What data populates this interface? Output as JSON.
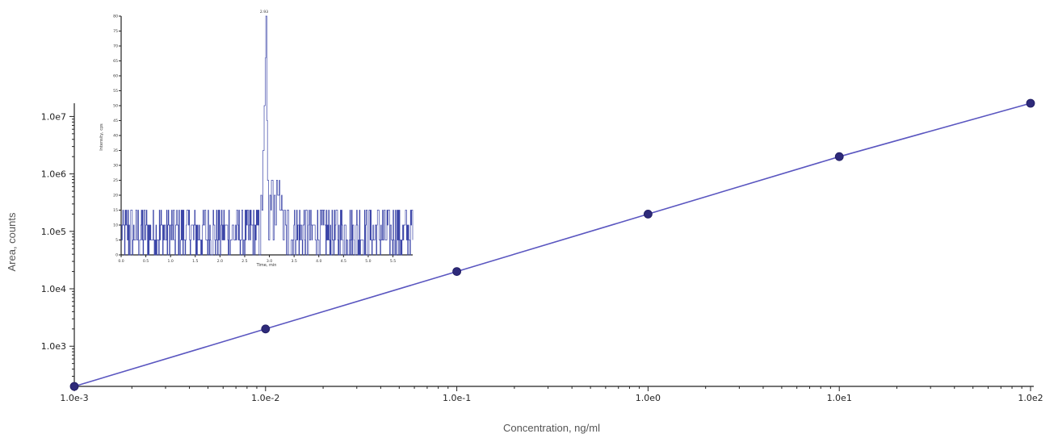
{
  "chart_data": [
    {
      "type": "line",
      "title": "",
      "xlabel": "Concentration, ng/ml",
      "ylabel": "Area, counts",
      "x_scale": "log",
      "y_scale": "log",
      "xlim": [
        0.001,
        100
      ],
      "ylim": [
        200,
        17000000
      ],
      "x_ticks": [
        0.001,
        0.01,
        0.1,
        1,
        10,
        100
      ],
      "x_tick_labels": [
        "1.0e-3",
        "1.0e-2",
        "1.0e-1",
        "1.0e0",
        "1.0e1",
        "1.0e2"
      ],
      "y_ticks": [
        1000,
        10000,
        100000,
        1000000,
        10000000
      ],
      "y_tick_labels": [
        "1.0e3",
        "1.0e4",
        "1.0e5",
        "1.0e6",
        "1.0e7"
      ],
      "grid": false,
      "color": "#5a56c0",
      "marker_color": "#2e2a7a",
      "series": [
        {
          "x": [
            0.001,
            0.01,
            0.1,
            1,
            10,
            100
          ],
          "y": [
            200,
            2000,
            20000,
            200000,
            2000000,
            20000000
          ]
        }
      ]
    },
    {
      "type": "line",
      "title": "",
      "xlabel": "Time, min",
      "ylabel": "Intensity, cps",
      "xlim": [
        0,
        5.9
      ],
      "ylim": [
        0,
        80
      ],
      "x_tick_labels": [
        "0.0",
        "0.5",
        "1.0",
        "1.5",
        "2.0",
        "2.5",
        "3.0",
        "3.5",
        "4.0",
        "4.5",
        "5.0",
        "5.5"
      ],
      "y_tick_labels": [
        "0",
        "5",
        "10",
        "15",
        "20",
        "25",
        "30",
        "35",
        "40",
        "45",
        "50",
        "55",
        "60",
        "65",
        "70",
        "75",
        "80"
      ],
      "peak_label": "2.93",
      "color": "#3c46a8",
      "noise_levels": [
        0,
        5,
        10,
        15
      ],
      "peak_x": [
        2.82,
        2.86,
        2.88,
        2.9,
        2.92,
        2.93,
        2.95,
        2.97,
        2.99,
        3.01,
        3.03,
        3.05,
        3.08,
        3.1,
        3.12,
        3.15,
        3.18,
        3.2,
        3.22,
        3.25
      ],
      "peak_y": [
        20,
        15,
        35,
        50,
        66,
        80,
        45,
        25,
        5,
        20,
        15,
        25,
        5,
        20,
        10,
        25,
        20,
        25,
        15,
        20
      ]
    }
  ]
}
